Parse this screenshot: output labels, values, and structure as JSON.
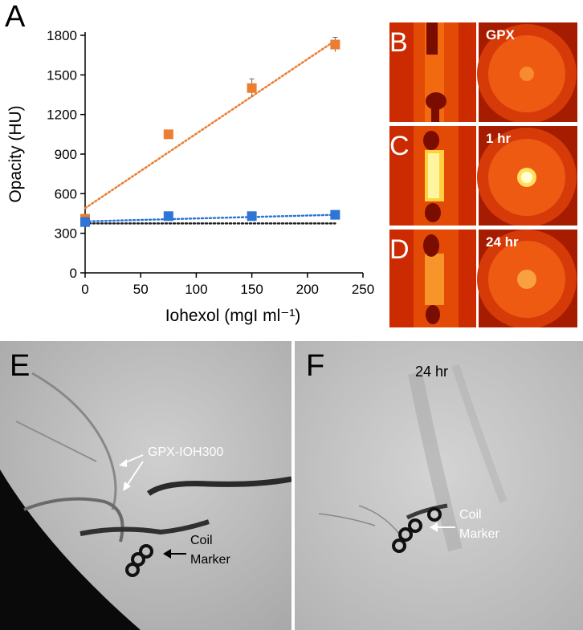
{
  "panels": {
    "A": "A",
    "B": "B",
    "C": "C",
    "D": "D",
    "E": "E",
    "F": "F"
  },
  "ct_labels": {
    "B": "GPX",
    "C": "1 hr",
    "D": "24 hr"
  },
  "fluoro": {
    "E": {
      "annotation_1": "GPX-IOH300",
      "annotation_2_line1": "Coil",
      "annotation_2_line2": "Marker"
    },
    "F": {
      "time_label": "24 hr",
      "annotation_line1": "Coil",
      "annotation_line2": "Marker"
    }
  },
  "colors": {
    "orange": "#ed7d31",
    "blue": "#2e75d6",
    "black_dotted": "#222222",
    "axis": "#000000"
  },
  "chart_data": {
    "type": "scatter",
    "title": "",
    "xlabel": "Iohexol (mgI ml⁻¹)",
    "ylabel": "Opacity (HU)",
    "xlim": [
      0,
      250
    ],
    "ylim": [
      0,
      1800
    ],
    "xticks": [
      0,
      50,
      100,
      150,
      200,
      250
    ],
    "yticks": [
      0,
      300,
      600,
      900,
      1200,
      1500,
      1800
    ],
    "grid": false,
    "series": [
      {
        "color": "#ed7d31",
        "marker": "square",
        "x": [
          0,
          75,
          150,
          225
        ],
        "y": [
          410,
          1050,
          1400,
          1730
        ],
        "yerr": [
          0,
          0,
          70,
          55
        ],
        "trendline": {
          "x": [
            0,
            225
          ],
          "y": [
            490,
            1760
          ],
          "style": "dotted"
        }
      },
      {
        "color": "#2e75d6",
        "marker": "square",
        "x": [
          0,
          75,
          150,
          225
        ],
        "y": [
          385,
          430,
          430,
          440
        ],
        "yerr": [
          0,
          0,
          0,
          0
        ],
        "trendline": {
          "x": [
            0,
            225
          ],
          "y": [
            390,
            440
          ],
          "style": "dotted"
        }
      },
      {
        "color": "#222222",
        "marker": "none",
        "x": [
          0,
          225
        ],
        "y": [
          375,
          375
        ],
        "trendline": {
          "x": [
            0,
            225
          ],
          "y": [
            375,
            375
          ],
          "style": "dotted"
        }
      }
    ]
  }
}
